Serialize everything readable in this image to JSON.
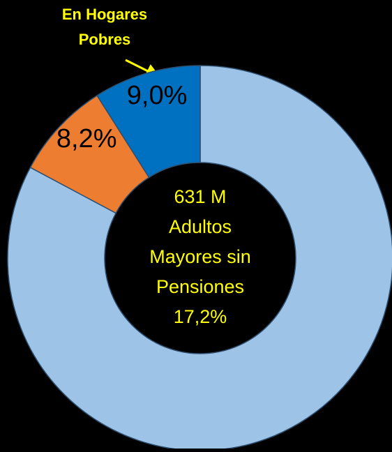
{
  "chart_data": {
    "type": "donut",
    "values": [
      82.8,
      8.2,
      9.0
    ],
    "value_labels": [
      null,
      "8,2%",
      "9,0%"
    ],
    "colors": [
      "#9dc3e6",
      "#ed7d31",
      "#0070c0"
    ],
    "center_text": [
      "631 M",
      "Adultos",
      "Mayores sin",
      "Pensiones",
      "17,2%"
    ],
    "annotation": [
      "En Hogares",
      "Pobres"
    ]
  }
}
